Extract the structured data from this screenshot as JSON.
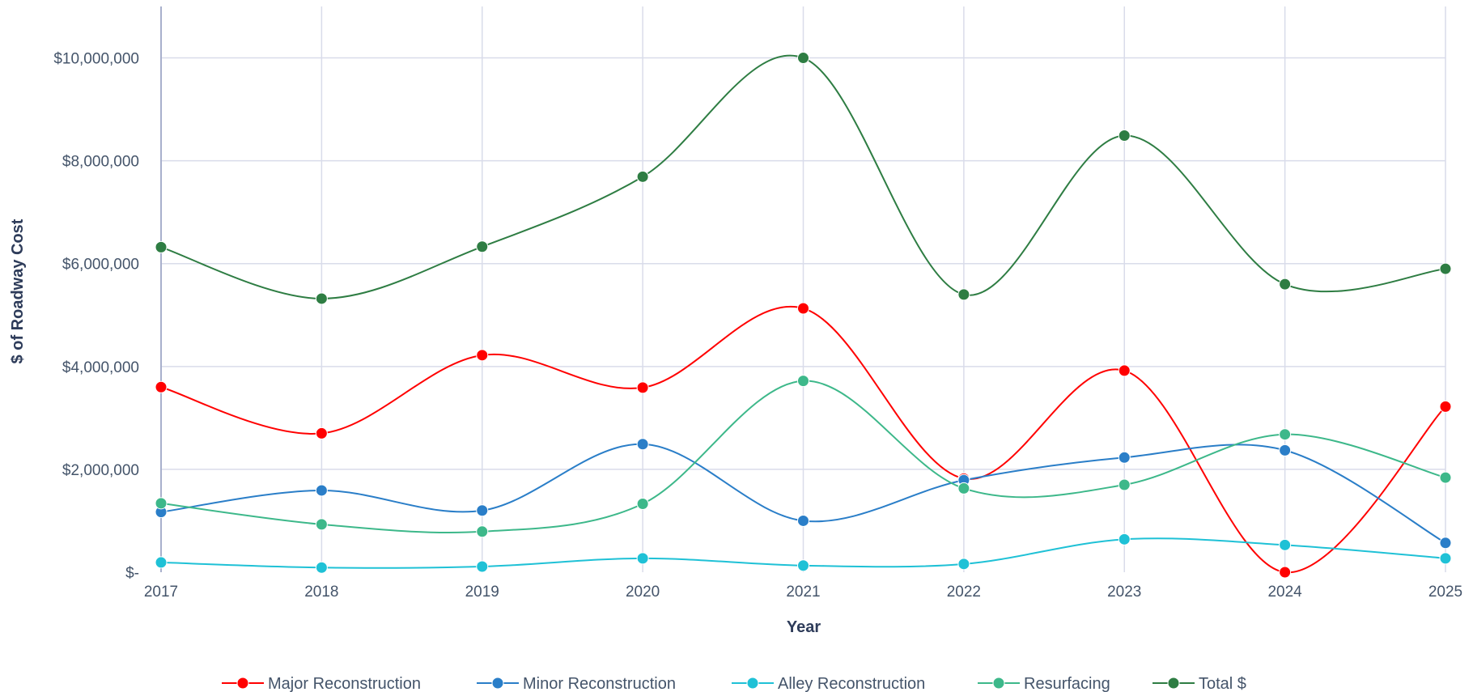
{
  "chart_data": {
    "type": "line",
    "title": "",
    "xlabel": "Year",
    "ylabel": "$ of Roadway Cost",
    "categories": [
      "2017",
      "2018",
      "2019",
      "2020",
      "2021",
      "2022",
      "2023",
      "2024",
      "2025"
    ],
    "ylim": [
      0,
      11000000
    ],
    "yticks": [
      0,
      2000000,
      4000000,
      6000000,
      8000000,
      10000000
    ],
    "ytick_labels": [
      "$-",
      "$2,000,000",
      "$4,000,000",
      "$6,000,000",
      "$8,000,000",
      "$10,000,000"
    ],
    "grid": true,
    "smooth": true,
    "legend_position": "bottom",
    "series": [
      {
        "name": "Major Reconstruction",
        "color": "#ff0000",
        "values": [
          3600000,
          2700000,
          4220000,
          3590000,
          5130000,
          1820000,
          3920000,
          0,
          3220000
        ]
      },
      {
        "name": "Minor Reconstruction",
        "color": "#2a7ec8",
        "values": [
          1170000,
          1590000,
          1200000,
          2490000,
          1000000,
          1790000,
          2230000,
          2370000,
          570000
        ]
      },
      {
        "name": "Alley Reconstruction",
        "color": "#1fc1d6",
        "values": [
          190000,
          90000,
          110000,
          270000,
          130000,
          160000,
          640000,
          530000,
          270000
        ]
      },
      {
        "name": "Resurfacing",
        "color": "#3db88a",
        "values": [
          1340000,
          930000,
          790000,
          1330000,
          3720000,
          1630000,
          1700000,
          2680000,
          1840000
        ]
      },
      {
        "name": "Total $",
        "color": "#2e7d43",
        "values": [
          6320000,
          5320000,
          6330000,
          7690000,
          10000000,
          5400000,
          8490000,
          5600000,
          5900000
        ]
      }
    ]
  }
}
